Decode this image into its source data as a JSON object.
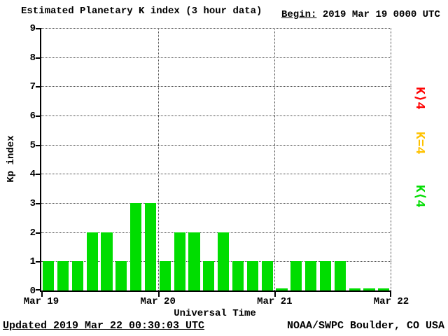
{
  "title": "Estimated Planetary K index (3 hour data)",
  "begin_label": "Begin:",
  "begin_value": "2019 Mar 19 0000 UTC",
  "legend": [
    {
      "label": "K⟩4",
      "color": "#ff0000"
    },
    {
      "label": "K=4",
      "color": "#ffc200"
    },
    {
      "label": "K⟨4",
      "color": "#00dd00"
    }
  ],
  "footer": {
    "updated": "Updated 2019 Mar 22 00:30:03 UTC",
    "source": "NOAA/SWPC Boulder, CO USA"
  },
  "chart_data": {
    "type": "bar",
    "title": "Estimated Planetary K index (3 hour data)",
    "xlabel": "Universal Time",
    "ylabel": "Kp index",
    "ylim": [
      0,
      9
    ],
    "yticks": [
      0,
      1,
      2,
      3,
      4,
      5,
      6,
      7,
      8,
      9
    ],
    "day_ticks": [
      "Mar 19",
      "Mar 20",
      "Mar 21",
      "Mar 22"
    ],
    "interval_hours": 3,
    "bars_per_day": 8,
    "values": [
      1,
      1,
      1,
      2,
      2,
      1,
      3,
      3,
      1,
      2,
      2,
      1,
      2,
      1,
      1,
      1,
      0,
      1,
      1,
      1,
      1,
      0,
      0,
      0
    ],
    "bar_colors": {
      "k_lt_4": "#00dd00",
      "k_eq_4": "#ffc200",
      "k_gt_4": "#ff0000"
    },
    "grid": "dotted",
    "legend_position": "right"
  }
}
